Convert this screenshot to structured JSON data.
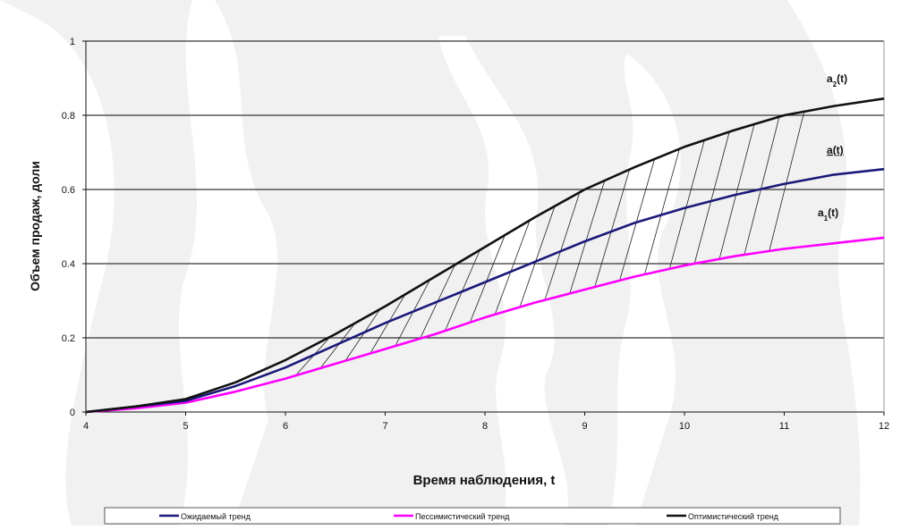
{
  "chart_data": {
    "type": "line",
    "title": "",
    "xlabel": "Время наблюдения, t",
    "ylabel": "Объем продаж, доли",
    "xlim": [
      4,
      12
    ],
    "ylim": [
      0,
      1
    ],
    "x_ticks": [
      "4",
      "5",
      "6",
      "7",
      "8",
      "9",
      "10",
      "11",
      "12"
    ],
    "y_ticks": [
      "0",
      "0.2",
      "0.4",
      "0.6",
      "0.8",
      "1"
    ],
    "grid": "horizontal",
    "legend_position": "bottom",
    "x": [
      4,
      4.5,
      5,
      5.5,
      6,
      6.5,
      7,
      7.5,
      8,
      8.5,
      9,
      9.5,
      10,
      10.5,
      11,
      11.5,
      12
    ],
    "series": [
      {
        "name": "Ожидаемый тренд",
        "color": "#1a1a7a",
        "values": [
          0.0,
          0.015,
          0.03,
          0.07,
          0.12,
          0.18,
          0.24,
          0.295,
          0.35,
          0.405,
          0.46,
          0.51,
          0.55,
          0.585,
          0.615,
          0.64,
          0.655
        ]
      },
      {
        "name": "Пессимистический тренд",
        "color": "#ff00ff",
        "values": [
          0.0,
          0.01,
          0.025,
          0.055,
          0.09,
          0.13,
          0.17,
          0.21,
          0.255,
          0.295,
          0.33,
          0.365,
          0.395,
          0.42,
          0.44,
          0.455,
          0.47
        ]
      },
      {
        "name": "Оптимистический тренд",
        "color": "#111111",
        "values": [
          0.0,
          0.015,
          0.035,
          0.08,
          0.14,
          0.21,
          0.285,
          0.365,
          0.445,
          0.525,
          0.6,
          0.66,
          0.715,
          0.76,
          0.8,
          0.825,
          0.845
        ]
      }
    ],
    "annotations": [
      {
        "id": "a2",
        "base": "a",
        "sub": "2",
        "suffix": "(t)"
      },
      {
        "id": "a",
        "base": "a",
        "sub": "",
        "suffix": "(t)"
      },
      {
        "id": "a1",
        "base": "a",
        "sub": "1",
        "suffix": "(t)"
      }
    ],
    "hatch_x": [
      6.1,
      6.35,
      6.6,
      6.85,
      7.1,
      7.35,
      7.6,
      7.85,
      8.1,
      8.35,
      8.6,
      8.85,
      9.1,
      9.35,
      9.6,
      9.85,
      10.1,
      10.35,
      10.6,
      10.85
    ]
  }
}
